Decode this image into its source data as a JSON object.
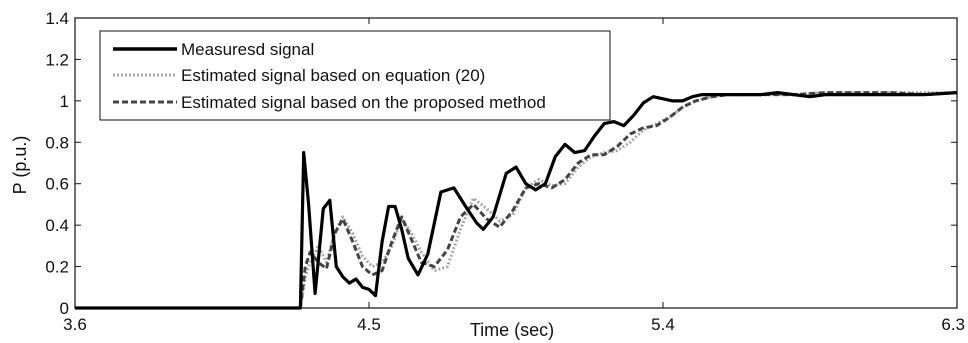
{
  "chart_data": {
    "type": "line",
    "title": "",
    "xlabel": "Time (sec)",
    "ylabel": "P (p.u.)",
    "xlim": [
      3.6,
      6.3
    ],
    "ylim": [
      0,
      1.4
    ],
    "xticks": [
      "3.6",
      "4.5",
      "5.4",
      "6.3"
    ],
    "xtick_values": [
      3.6,
      4.5,
      5.4,
      6.3
    ],
    "yticks": [
      "0",
      "0.2",
      "0.4",
      "0.6",
      "0.8",
      "1",
      "1.2",
      "1.4"
    ],
    "ytick_values": [
      0,
      0.2,
      0.4,
      0.6,
      0.8,
      1,
      1.2,
      1.4
    ],
    "grid": false,
    "legend_position": "top-left",
    "series": [
      {
        "name": "Measuresd signal",
        "style": "solid-black-thick",
        "x": [
          3.6,
          4.29,
          4.3,
          4.315,
          4.335,
          4.36,
          4.38,
          4.4,
          4.42,
          4.44,
          4.46,
          4.48,
          4.5,
          4.52,
          4.54,
          4.56,
          4.58,
          4.6,
          4.62,
          4.65,
          4.68,
          4.72,
          4.76,
          4.8,
          4.83,
          4.85,
          4.88,
          4.92,
          4.95,
          4.98,
          5.01,
          5.04,
          5.07,
          5.1,
          5.13,
          5.16,
          5.19,
          5.22,
          5.25,
          5.28,
          5.31,
          5.34,
          5.37,
          5.4,
          5.43,
          5.46,
          5.49,
          5.52,
          5.55,
          5.6,
          5.65,
          5.7,
          5.75,
          5.8,
          5.85,
          5.9,
          5.95,
          6.0,
          6.1,
          6.2,
          6.3
        ],
        "y": [
          0,
          0,
          0.75,
          0.5,
          0.07,
          0.48,
          0.52,
          0.2,
          0.15,
          0.12,
          0.14,
          0.1,
          0.09,
          0.06,
          0.32,
          0.49,
          0.49,
          0.38,
          0.24,
          0.16,
          0.26,
          0.56,
          0.58,
          0.48,
          0.41,
          0.38,
          0.44,
          0.65,
          0.68,
          0.6,
          0.57,
          0.6,
          0.73,
          0.79,
          0.75,
          0.76,
          0.83,
          0.89,
          0.9,
          0.88,
          0.93,
          0.99,
          1.02,
          1.01,
          1.0,
          1.0,
          1.02,
          1.03,
          1.03,
          1.03,
          1.03,
          1.03,
          1.04,
          1.03,
          1.02,
          1.03,
          1.03,
          1.03,
          1.03,
          1.03,
          1.04
        ]
      },
      {
        "name": "Estimated signal based on equation (20)",
        "style": "dotted-gray",
        "x": [
          3.6,
          4.29,
          4.305,
          4.32,
          4.345,
          4.37,
          4.395,
          4.42,
          4.45,
          4.48,
          4.51,
          4.54,
          4.57,
          4.6,
          4.63,
          4.66,
          4.7,
          4.74,
          4.78,
          4.82,
          4.86,
          4.9,
          4.94,
          4.98,
          5.02,
          5.06,
          5.1,
          5.14,
          5.18,
          5.22,
          5.26,
          5.3,
          5.34,
          5.38,
          5.42,
          5.46,
          5.5,
          5.55,
          5.6,
          5.7,
          5.8,
          5.9,
          6.0,
          6.1,
          6.2,
          6.3
        ],
        "y": [
          0,
          0,
          0.15,
          0.22,
          0.3,
          0.22,
          0.36,
          0.44,
          0.36,
          0.25,
          0.2,
          0.22,
          0.3,
          0.43,
          0.36,
          0.27,
          0.18,
          0.2,
          0.38,
          0.53,
          0.48,
          0.42,
          0.45,
          0.58,
          0.62,
          0.59,
          0.6,
          0.68,
          0.73,
          0.75,
          0.76,
          0.8,
          0.86,
          0.89,
          0.92,
          0.97,
          1.0,
          1.02,
          1.03,
          1.03,
          1.03,
          1.04,
          1.04,
          1.04,
          1.04,
          1.04
        ]
      },
      {
        "name": "Estimated signal based on the proposed method",
        "style": "dashed-dark",
        "x": [
          3.6,
          4.29,
          4.305,
          4.32,
          4.345,
          4.37,
          4.395,
          4.42,
          4.45,
          4.48,
          4.51,
          4.54,
          4.57,
          4.6,
          4.63,
          4.66,
          4.7,
          4.74,
          4.78,
          4.82,
          4.86,
          4.9,
          4.94,
          4.98,
          5.02,
          5.06,
          5.1,
          5.14,
          5.18,
          5.22,
          5.26,
          5.3,
          5.34,
          5.38,
          5.42,
          5.46,
          5.5,
          5.55,
          5.6,
          5.7,
          5.8,
          5.9,
          6.0,
          6.1,
          6.2,
          6.3
        ],
        "y": [
          0,
          0,
          0.2,
          0.27,
          0.22,
          0.19,
          0.36,
          0.43,
          0.32,
          0.2,
          0.16,
          0.18,
          0.32,
          0.44,
          0.33,
          0.22,
          0.2,
          0.28,
          0.44,
          0.5,
          0.43,
          0.39,
          0.47,
          0.58,
          0.6,
          0.58,
          0.62,
          0.7,
          0.74,
          0.74,
          0.78,
          0.84,
          0.87,
          0.88,
          0.92,
          0.97,
          1.0,
          1.02,
          1.03,
          1.03,
          1.03,
          1.04,
          1.04,
          1.04,
          1.03,
          1.04
        ]
      }
    ]
  }
}
